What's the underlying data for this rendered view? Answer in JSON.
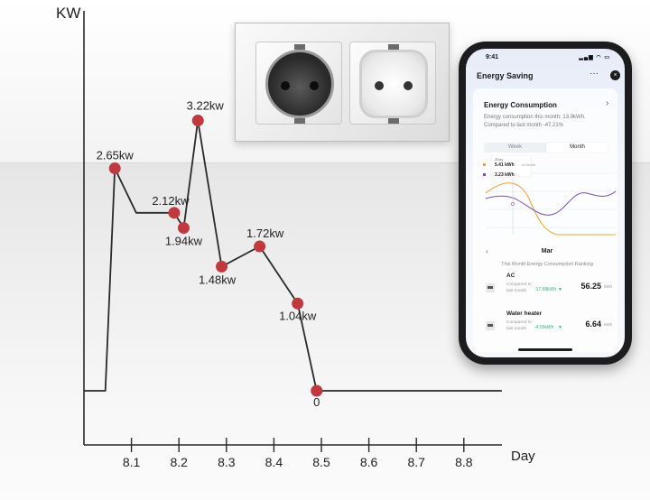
{
  "chart_data": {
    "type": "line",
    "ylabel": "KW",
    "xlabel": "Day",
    "xticks": [
      "8.1",
      "8.2",
      "8.3",
      "8.4",
      "8.5",
      "8.6",
      "8.7",
      "8.8"
    ],
    "xlim": [
      8.0,
      8.88
    ],
    "ylim": [
      -0.4,
      4.0
    ],
    "line_color": "#2a2a2a",
    "marker_color": "#c0393f",
    "series": [
      {
        "x": [
          8.0,
          8.045,
          8.065,
          8.11,
          8.19,
          8.21,
          8.24,
          8.29,
          8.37,
          8.45,
          8.49,
          8.88
        ],
        "y": [
          0.0,
          0.0,
          2.65,
          2.12,
          2.12,
          1.94,
          3.22,
          1.48,
          1.72,
          1.04,
          0.0,
          0.0
        ]
      }
    ],
    "points": [
      {
        "x": 8.065,
        "y": 2.65,
        "label": "2.65kw"
      },
      {
        "x": 8.19,
        "y": 2.12,
        "label": "2.12kw"
      },
      {
        "x": 8.21,
        "y": 1.94,
        "label": "1.94kw"
      },
      {
        "x": 8.24,
        "y": 3.22,
        "label": "3.22kw"
      },
      {
        "x": 8.29,
        "y": 1.48,
        "label": "1.48kw"
      },
      {
        "x": 8.37,
        "y": 1.72,
        "label": "1.72kw"
      },
      {
        "x": 8.45,
        "y": 1.04,
        "label": "1.04kw"
      },
      {
        "x": 8.49,
        "y": 0.0,
        "label": "0"
      }
    ]
  },
  "phone": {
    "status_time": "9:41",
    "status_icons": "▂▄▆ ◠ ▭",
    "title": "Energy Saving",
    "more_icon": "···",
    "close_icon": "×",
    "card_title": "Energy Consumption",
    "card_chevron": "›",
    "card_description": "Energy consumption this month: 13.9kWh. Compared to last month -47.21%",
    "tabs": [
      "Week",
      "Month"
    ],
    "active_tab": "Month",
    "mini_chart": {
      "legend": [
        {
          "value": "5.41 kWh",
          "color": "#e8a33c",
          "note": "st Month"
        },
        {
          "value": "3.23 kWh",
          "color": "#7c4fb3",
          "note": ""
        }
      ],
      "tooltip_header": "2Day",
      "colors": {
        "last_month": "#e8a33c",
        "this_month": "#7c4fb3"
      }
    },
    "month_prev": "‹",
    "month_label": "Mar",
    "ranking_title": "This Month Energy Consumption Ranking",
    "items": [
      {
        "name": "AC",
        "compare": "Compared to last month",
        "delta": "-17.58kWh",
        "arrow": "▼",
        "value": "56.25",
        "unit": "kWh"
      },
      {
        "name": "Water heater",
        "compare": "Compared to last month",
        "delta": "-4.55kWh",
        "arrow": "▼",
        "value": "6.64",
        "unit": "kWh"
      }
    ]
  }
}
